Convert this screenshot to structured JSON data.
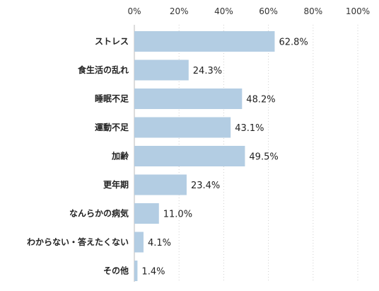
{
  "chart_data": {
    "type": "bar",
    "orientation": "horizontal",
    "categories": [
      "ストレス",
      "食生活の乱れ",
      "睡眠不足",
      "運動不足",
      "加齢",
      "更年期",
      "なんらかの病気",
      "わからない・答えたくない",
      "その他"
    ],
    "values": [
      62.8,
      24.3,
      48.2,
      43.1,
      49.5,
      23.4,
      11.0,
      4.1,
      1.4
    ],
    "value_labels": [
      "62.8%",
      "24.3%",
      "48.2%",
      "43.1%",
      "49.5%",
      "23.4%",
      "11.0%",
      "4.1%",
      "1.4%"
    ],
    "xlim": [
      0,
      100
    ],
    "x_ticks": [
      0,
      20,
      40,
      60,
      80,
      100
    ],
    "x_tick_labels": [
      "0%",
      "20%",
      "40%",
      "60%",
      "80%",
      "100%"
    ],
    "x_axis_position": "top",
    "grid": true,
    "bar_color": "#b3cde3",
    "title": "",
    "xlabel": "",
    "ylabel": ""
  }
}
